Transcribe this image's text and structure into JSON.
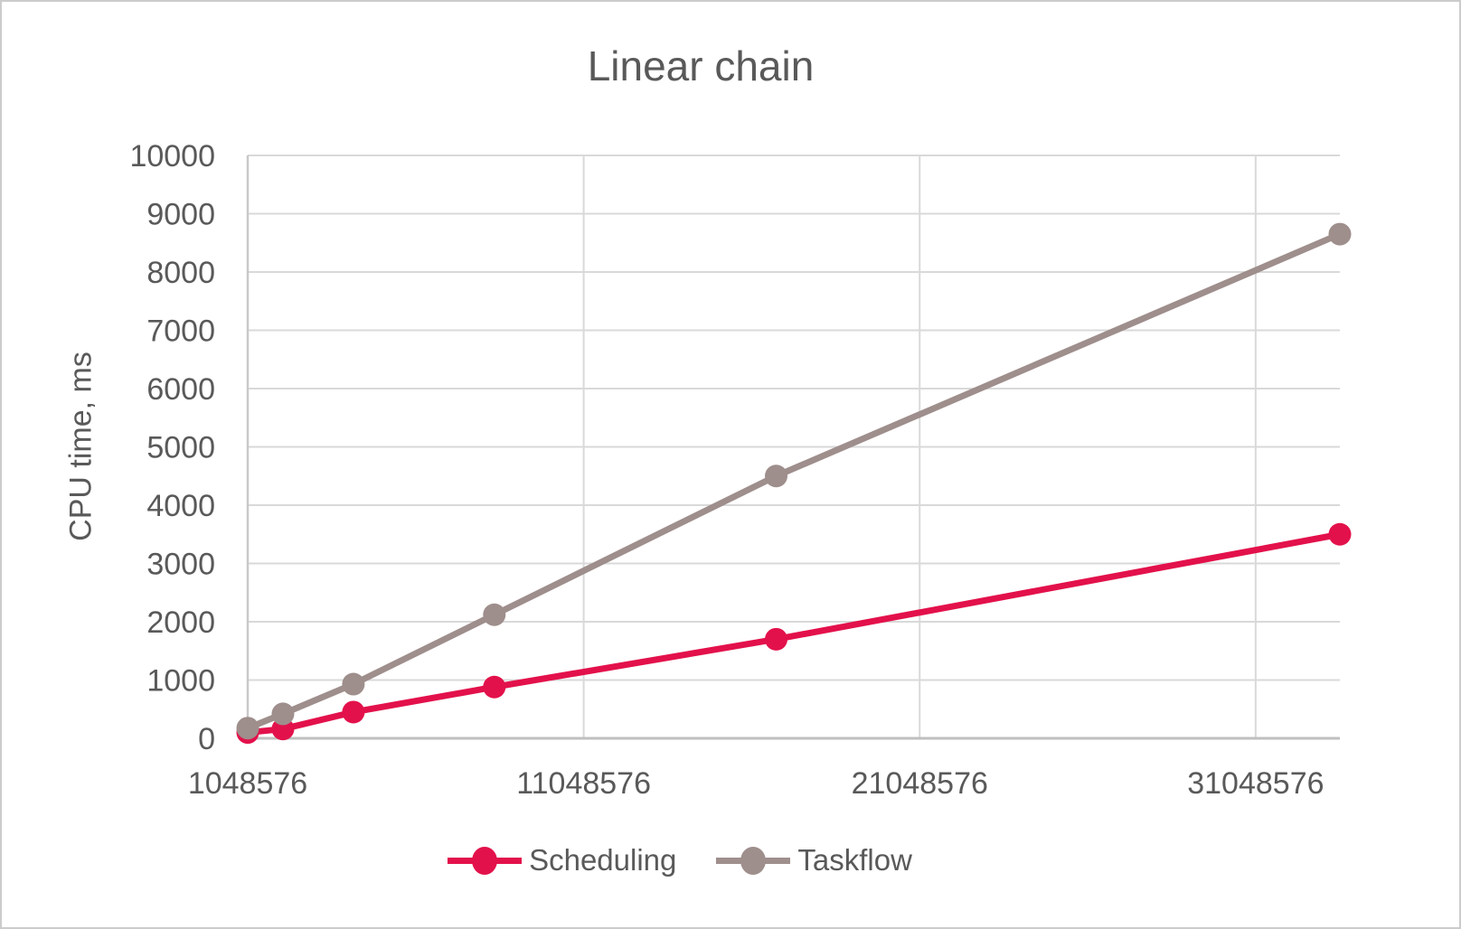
{
  "chart_data": {
    "type": "line",
    "title": "Linear chain",
    "xlabel": "",
    "ylabel": "CPU time, ms",
    "x": [
      1048576,
      2097152,
      4194304,
      8388608,
      16777216,
      33554432
    ],
    "series": [
      {
        "name": "Scheduling",
        "color": "#e3114b",
        "values": [
          100,
          160,
          450,
          880,
          1700,
          3500
        ]
      },
      {
        "name": "Taskflow",
        "color": "#9e8e8c",
        "values": [
          175,
          420,
          930,
          2120,
          4500,
          8650
        ]
      }
    ],
    "xticks": [
      1048576,
      11048576,
      21048576,
      31048576
    ],
    "yticks": [
      0,
      1000,
      2000,
      3000,
      4000,
      5000,
      6000,
      7000,
      8000,
      9000,
      10000
    ],
    "xlim": [
      1048576,
      33554432
    ],
    "ylim": [
      0,
      10000
    ],
    "grid": true,
    "legend_position": "bottom",
    "marker": "circle",
    "text_color": "#595959",
    "gridline_color": "#d9d9d9",
    "axis_color": "#bfbfbf"
  }
}
